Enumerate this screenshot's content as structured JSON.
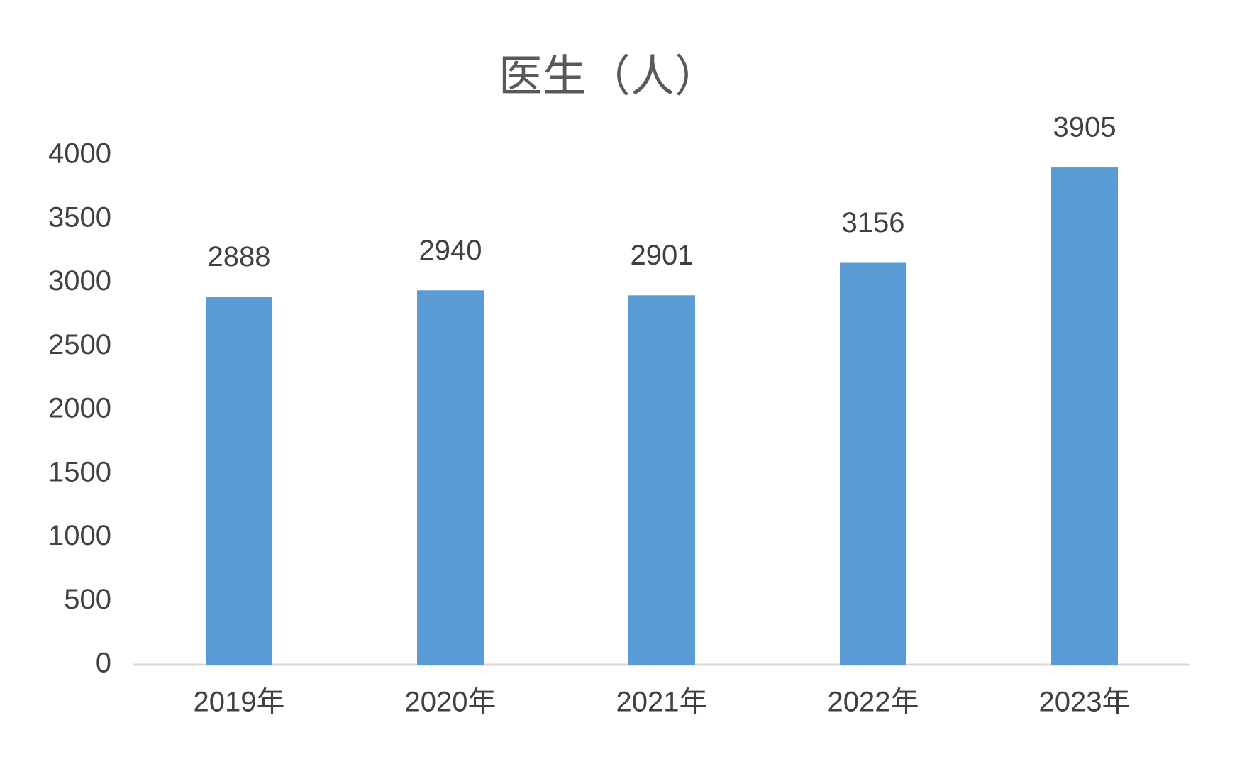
{
  "chart_data": {
    "type": "bar",
    "title": "医生（人）",
    "categories": [
      "2019年",
      "2020年",
      "2021年",
      "2022年",
      "2023年"
    ],
    "values": [
      2888,
      2940,
      2901,
      3156,
      3905
    ],
    "color": "#5b9bd5",
    "ylim": [
      0,
      4000
    ],
    "yticks": [
      0,
      500,
      1000,
      1500,
      2000,
      2500,
      3000,
      3500,
      4000
    ],
    "grid": false
  }
}
